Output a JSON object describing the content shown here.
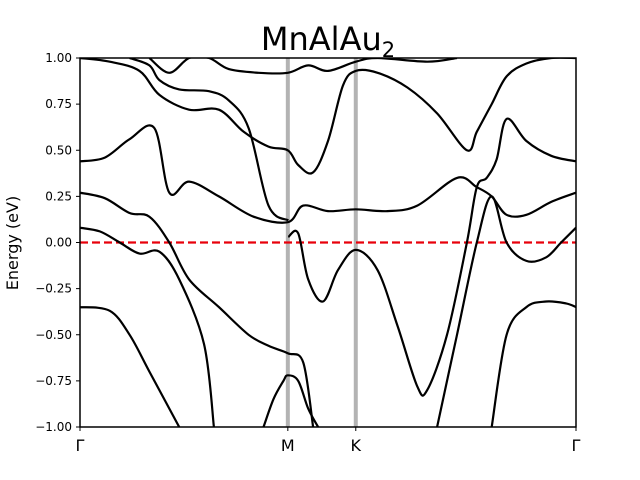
{
  "chart_data": {
    "type": "line",
    "title": "MnAlAu",
    "title_subscript": "2",
    "ylabel": "Energy (eV)",
    "xlabel": "",
    "xlim": [
      0,
      1
    ],
    "ylim": [
      -1.0,
      1.0
    ],
    "yticks": [
      "1.00",
      "0.75",
      "0.50",
      "0.25",
      "0.00",
      "−0.25",
      "−0.50",
      "−0.75",
      "−1.00"
    ],
    "ytick_values": [
      1.0,
      0.75,
      0.5,
      0.25,
      0.0,
      -0.25,
      -0.5,
      -0.75,
      -1.0
    ],
    "kpoints": [
      {
        "label": "Γ",
        "x": 0.0
      },
      {
        "label": "M",
        "x": 0.419
      },
      {
        "label": "K",
        "x": 0.556
      },
      {
        "label": "Γ",
        "x": 1.0
      }
    ],
    "fermi_level": 0.0,
    "colors": {
      "bands": "#000000",
      "fermi": "#e8000b",
      "kpath_lines": "#b3b3b3"
    },
    "series": [
      {
        "values": [
          [
            0,
            -0.35
          ],
          [
            0.06,
            -0.37
          ],
          [
            0.1,
            -0.5
          ],
          [
            0.14,
            -0.7
          ],
          [
            0.2,
            -1.0
          ]
        ]
      },
      {
        "values": [
          [
            0,
            0.08
          ],
          [
            0.04,
            0.06
          ],
          [
            0.08,
            0.0
          ],
          [
            0.12,
            -0.06
          ],
          [
            0.16,
            -0.05
          ],
          [
            0.2,
            -0.2
          ],
          [
            0.25,
            -0.55
          ],
          [
            0.27,
            -1.0
          ]
        ]
      },
      {
        "values": [
          [
            0.37,
            -1.0
          ],
          [
            0.39,
            -0.85
          ],
          [
            0.41,
            -0.75
          ],
          [
            0.419,
            -0.72
          ],
          [
            0.44,
            -0.75
          ],
          [
            0.46,
            -0.9
          ],
          [
            0.48,
            -1.0
          ]
        ]
      },
      {
        "values": [
          [
            0,
            0.27
          ],
          [
            0.05,
            0.24
          ],
          [
            0.1,
            0.16
          ],
          [
            0.14,
            0.14
          ],
          [
            0.18,
            0.0
          ],
          [
            0.22,
            -0.2
          ],
          [
            0.28,
            -0.35
          ],
          [
            0.34,
            -0.5
          ],
          [
            0.38,
            -0.56
          ],
          [
            0.419,
            -0.6
          ],
          [
            0.45,
            -0.65
          ],
          [
            0.47,
            -1.0
          ]
        ]
      },
      {
        "values": [
          [
            0.72,
            -1.0
          ],
          [
            0.76,
            -0.5
          ],
          [
            0.8,
            0.0
          ],
          [
            0.83,
            0.25
          ],
          [
            0.86,
            0.0
          ],
          [
            0.9,
            -0.1
          ],
          [
            0.94,
            -0.08
          ],
          [
            0.97,
            0.0
          ],
          [
            1,
            0.08
          ]
        ]
      },
      {
        "values": [
          [
            0.83,
            -1.0
          ],
          [
            0.86,
            -0.5
          ],
          [
            0.9,
            -0.35
          ],
          [
            0.94,
            -0.32
          ],
          [
            0.98,
            -0.33
          ],
          [
            1,
            -0.35
          ]
        ]
      },
      {
        "values": [
          [
            0,
            0.44
          ],
          [
            0.05,
            0.46
          ],
          [
            0.1,
            0.56
          ],
          [
            0.15,
            0.62
          ],
          [
            0.18,
            0.27
          ],
          [
            0.22,
            0.33
          ],
          [
            0.28,
            0.25
          ],
          [
            0.35,
            0.14
          ],
          [
            0.419,
            0.11
          ],
          [
            0.45,
            0.2
          ],
          [
            0.5,
            0.17
          ],
          [
            0.556,
            0.18
          ],
          [
            0.62,
            0.17
          ],
          [
            0.68,
            0.2
          ],
          [
            0.76,
            0.35
          ],
          [
            0.8,
            0.3
          ],
          [
            0.83,
            0.25
          ],
          [
            0.86,
            0.15
          ],
          [
            0.9,
            0.15
          ],
          [
            0.95,
            0.22
          ],
          [
            1,
            0.27
          ]
        ]
      },
      {
        "values": [
          [
            0.42,
            0.03
          ],
          [
            0.44,
            0.05
          ],
          [
            0.46,
            -0.2
          ],
          [
            0.49,
            -0.32
          ],
          [
            0.52,
            -0.15
          ],
          [
            0.556,
            -0.04
          ],
          [
            0.6,
            -0.15
          ],
          [
            0.64,
            -0.45
          ],
          [
            0.68,
            -0.78
          ],
          [
            0.7,
            -0.8
          ],
          [
            0.74,
            -0.5
          ],
          [
            0.78,
            0.0
          ],
          [
            0.8,
            0.3
          ],
          [
            0.82,
            0.35
          ],
          [
            0.84,
            0.45
          ],
          [
            0.86,
            0.67
          ],
          [
            0.9,
            0.55
          ],
          [
            0.95,
            0.47
          ],
          [
            1,
            0.44
          ]
        ]
      },
      {
        "values": [
          [
            0,
            1.0
          ],
          [
            0.06,
            0.98
          ],
          [
            0.12,
            0.93
          ],
          [
            0.16,
            0.8
          ],
          [
            0.22,
            0.72
          ],
          [
            0.28,
            0.72
          ],
          [
            0.33,
            0.6
          ],
          [
            0.38,
            0.52
          ],
          [
            0.419,
            0.5
          ],
          [
            0.44,
            0.42
          ],
          [
            0.47,
            0.38
          ],
          [
            0.5,
            0.55
          ],
          [
            0.53,
            0.85
          ],
          [
            0.556,
            0.93
          ],
          [
            0.6,
            0.92
          ],
          [
            0.66,
            0.84
          ],
          [
            0.72,
            0.7
          ],
          [
            0.78,
            0.5
          ],
          [
            0.8,
            0.6
          ],
          [
            0.83,
            0.75
          ],
          [
            0.86,
            0.9
          ],
          [
            0.9,
            0.97
          ],
          [
            0.95,
            1.0
          ],
          [
            1,
            1.0
          ]
        ]
      },
      {
        "values": [
          [
            0.1,
            1.0
          ],
          [
            0.14,
            0.96
          ],
          [
            0.16,
            0.88
          ],
          [
            0.2,
            0.83
          ],
          [
            0.26,
            0.82
          ],
          [
            0.3,
            0.77
          ],
          [
            0.34,
            0.62
          ],
          [
            0.38,
            0.2
          ],
          [
            0.42,
            0.12
          ]
        ]
      },
      {
        "values": [
          [
            0.14,
            1.0
          ],
          [
            0.18,
            0.92
          ],
          [
            0.22,
            1.0
          ],
          [
            0.26,
            1.0
          ],
          [
            0.3,
            0.94
          ],
          [
            0.36,
            0.92
          ],
          [
            0.419,
            0.92
          ],
          [
            0.46,
            0.96
          ],
          [
            0.5,
            0.93
          ],
          [
            0.556,
            0.98
          ],
          [
            0.6,
            1.0
          ],
          [
            0.7,
            0.98
          ],
          [
            0.76,
            1.0
          ]
        ]
      }
    ]
  }
}
